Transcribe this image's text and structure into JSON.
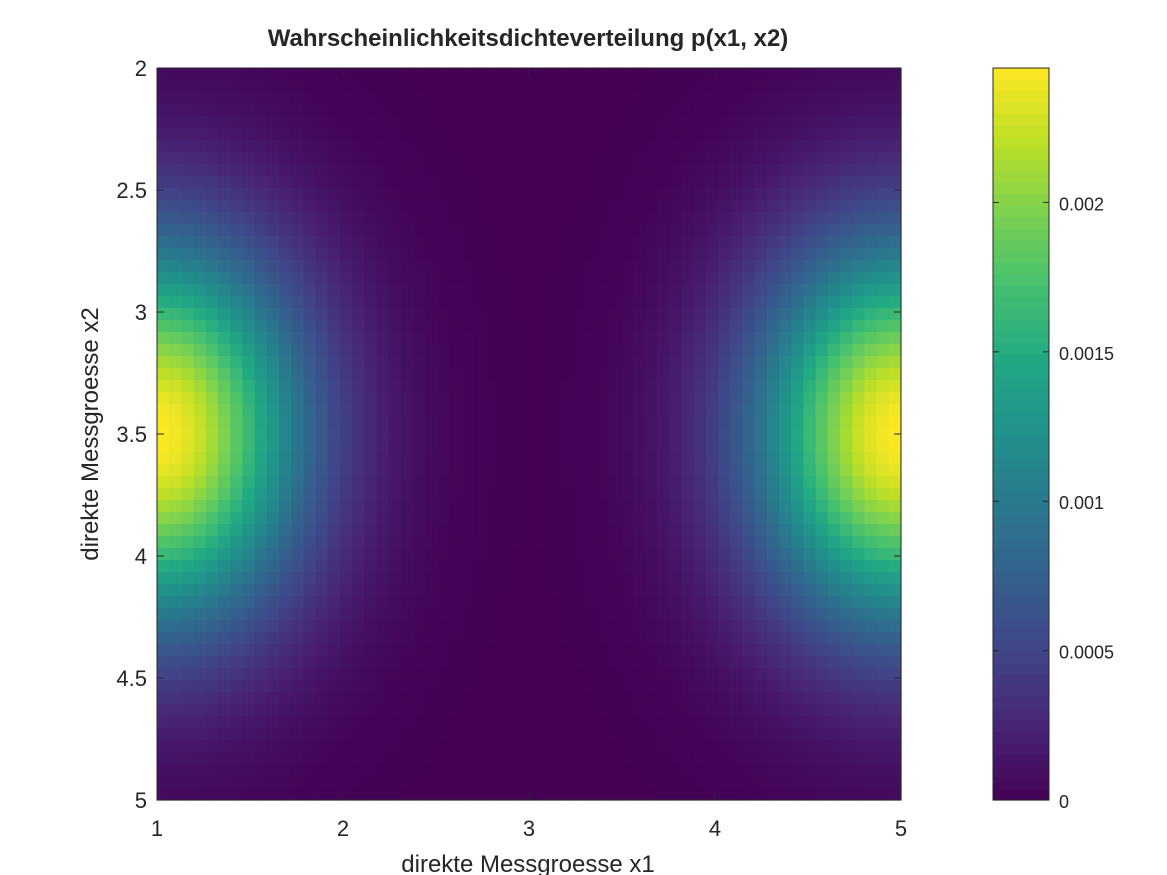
{
  "chart_data": {
    "type": "heatmap",
    "title": "Wahrscheinlichkeitsdichteverteilung p(x1, x2)",
    "xlabel": "direkte Messgroesse x1",
    "ylabel": "direkte Messgroesse x2",
    "xlim": [
      1,
      5
    ],
    "ylim": [
      2,
      5
    ],
    "y_direction": "reverse",
    "x_ticks": [
      1,
      2,
      3,
      4,
      5
    ],
    "x_tick_labels": [
      "1",
      "2",
      "3",
      "4",
      "5"
    ],
    "y_ticks": [
      2,
      2.5,
      3,
      3.5,
      4,
      4.5,
      5
    ],
    "y_tick_labels": [
      "2",
      "2.5",
      "3",
      "3.5",
      "4",
      "4.5",
      "5"
    ],
    "colormap": "viridis",
    "clim": [
      0,
      0.00245
    ],
    "colorbar": {
      "ticks": [
        0,
        0.0005,
        0.001,
        0.0015,
        0.002
      ],
      "tick_labels": [
        "0",
        "0.0005",
        "0.001",
        "0.0015",
        "0.002"
      ]
    },
    "grid": {
      "nx": 61,
      "ny": 61,
      "model": "p(x1,x2) = peak * exp(-(x1-3)^2 / (2*sx1^2)) * exp(-(x2-3.5)^2 / (2*sx2^2)) / exp(-(5-3)^2 / (2*sx1^2)), symmetric hill centered off-axis at both x1 ends",
      "peak": 0.00245,
      "x2_center": 3.5,
      "sx2": 0.55,
      "x1_edge_decay_scale": 0.55
    },
    "observed_maxima": [
      {
        "x1": 1,
        "x2": 3.5,
        "value": 0.00245
      },
      {
        "x1": 5,
        "x2": 3.5,
        "value": 0.00245
      }
    ],
    "observed_minimum_region": {
      "x1": 3,
      "value": 0
    }
  },
  "colors": {
    "background": "#ffffff",
    "axis": "#262626",
    "text": "#262626"
  }
}
